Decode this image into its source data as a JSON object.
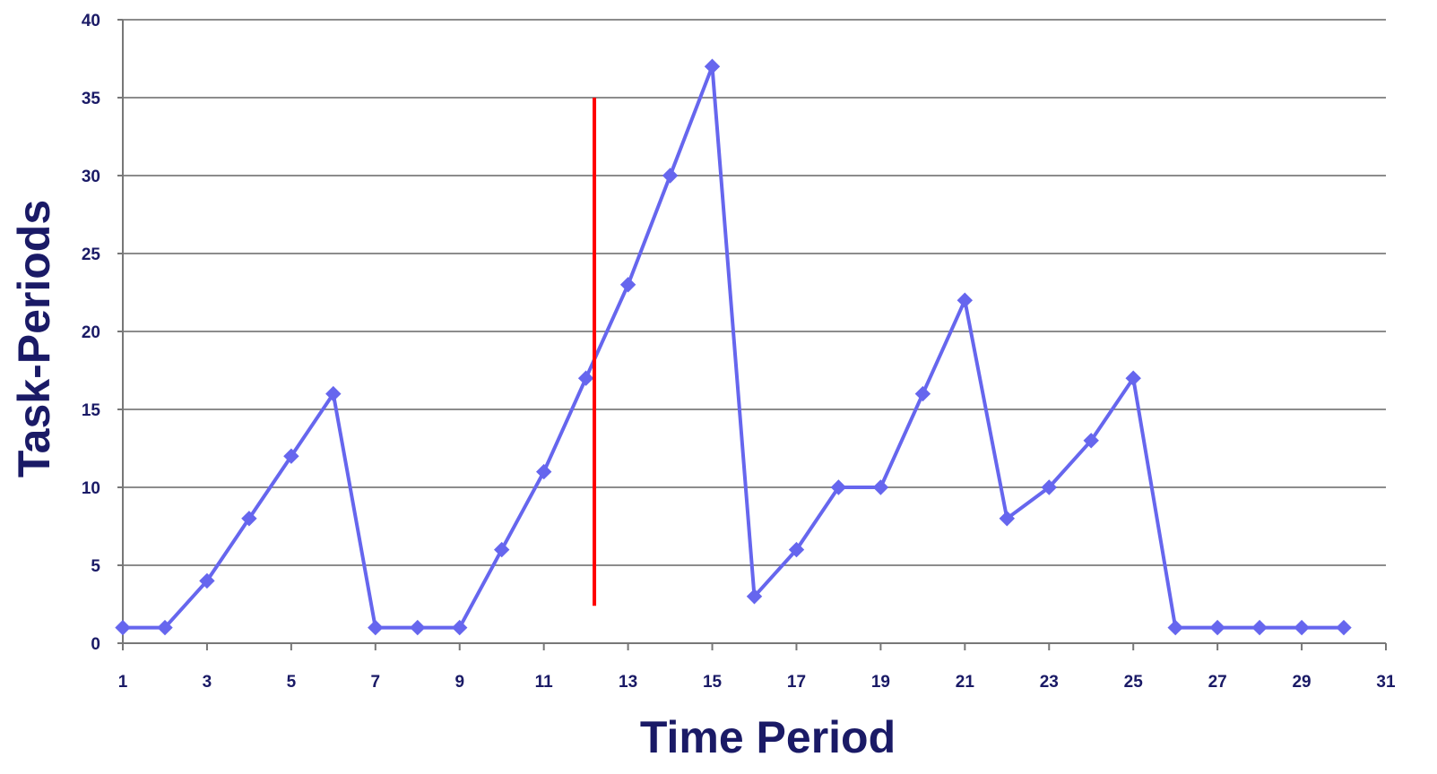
{
  "chart_data": {
    "type": "line",
    "title": "",
    "xlabel": "Time Period",
    "ylabel": "Task-Periods",
    "xlim": [
      1,
      31
    ],
    "ylim": [
      0,
      40
    ],
    "x_ticks": [
      1,
      3,
      5,
      7,
      9,
      11,
      13,
      15,
      17,
      19,
      21,
      23,
      25,
      27,
      29,
      31
    ],
    "y_ticks": [
      0,
      5,
      10,
      15,
      20,
      25,
      30,
      35,
      40
    ],
    "grid": "horizontal",
    "legend": "none",
    "series": [
      {
        "x": [
          1,
          2,
          3,
          4,
          5,
          6,
          7,
          8,
          9,
          10,
          11,
          12,
          13,
          14,
          15,
          16,
          17,
          18,
          19,
          20,
          21,
          22,
          23,
          24,
          25,
          26,
          27,
          28,
          29,
          30
        ],
        "values": [
          1,
          1,
          4,
          8,
          12,
          16,
          1,
          1,
          1,
          6,
          11,
          17,
          23,
          30,
          37,
          3,
          6,
          10,
          10,
          16,
          22,
          8,
          10,
          13,
          17,
          1,
          1,
          1,
          1,
          1
        ],
        "color": "#6666ee",
        "marker": "diamond"
      }
    ],
    "annotations": [
      {
        "type": "vertical-line",
        "x": 12.2,
        "y_range": [
          2.4,
          35
        ],
        "color": "#ff0000"
      }
    ],
    "colors": {
      "text": "#1a1a66",
      "grid": "#8c8c8c",
      "axis": "#777777"
    }
  }
}
